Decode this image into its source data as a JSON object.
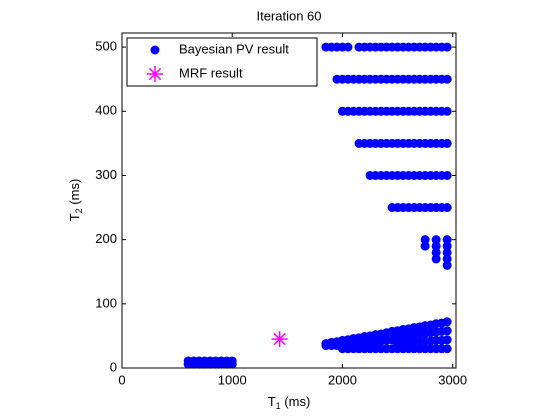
{
  "chart_data": {
    "type": "scatter",
    "title": "Iteration 60",
    "x_label": {
      "main": "T",
      "sub": "1",
      "unit": " (ms)"
    },
    "y_label": {
      "main": "T",
      "sub": "2",
      "unit": " (ms)"
    },
    "xlim": [
      0,
      3030
    ],
    "xticks": [
      0,
      1000,
      2000,
      3000
    ],
    "ylim": [
      0,
      522
    ],
    "yticks": [
      0,
      100,
      200,
      300,
      400,
      500
    ],
    "grid": false,
    "legend": "upper left",
    "series": [
      {
        "name": "Bayesian PV result",
        "color": "#0000ff",
        "marker": "o",
        "x": [
          600,
          650,
          700,
          750,
          800,
          850,
          900,
          950,
          1000,
          600,
          650,
          700,
          750,
          800,
          850,
          900,
          950,
          1000,
          1850,
          1900,
          1950,
          2000,
          2050,
          2150,
          2200,
          2250,
          2300,
          2350,
          2400,
          2450,
          2500,
          2550,
          2600,
          2650,
          2700,
          2750,
          2800,
          2850,
          2900,
          2950,
          1950,
          2000,
          2050,
          2100,
          2150,
          2200,
          2250,
          2300,
          2350,
          2400,
          2450,
          2500,
          2550,
          2600,
          2650,
          2700,
          2750,
          2800,
          2850,
          2900,
          2950,
          2000,
          2050,
          2100,
          2150,
          2200,
          2250,
          2300,
          2350,
          2400,
          2450,
          2500,
          2550,
          2600,
          2650,
          2700,
          2750,
          2800,
          2850,
          2900,
          2950,
          2150,
          2200,
          2250,
          2300,
          2350,
          2400,
          2450,
          2500,
          2550,
          2600,
          2650,
          2700,
          2750,
          2800,
          2850,
          2900,
          2950,
          2250,
          2300,
          2350,
          2400,
          2450,
          2500,
          2550,
          2600,
          2650,
          2700,
          2750,
          2800,
          2850,
          2900,
          2950,
          2450,
          2500,
          2550,
          2600,
          2650,
          2700,
          2750,
          2800,
          2850,
          2900,
          2950,
          2750,
          2750,
          2850,
          2850,
          2850,
          2850,
          2950,
          2950,
          2950,
          2950,
          2950,
          1850,
          1850,
          1850,
          1900,
          1900,
          1900,
          1950,
          1950,
          1950,
          2000,
          2000,
          2000,
          2050,
          2050,
          2050,
          2100,
          2100,
          2100,
          2150,
          2150,
          2150,
          2200,
          2200,
          2200,
          2250,
          2250,
          2250,
          2300,
          2300,
          2300,
          2350,
          2350,
          2350,
          2400,
          2400,
          2400,
          2450,
          2450,
          2450,
          2500,
          2500,
          2500,
          2500,
          2550,
          2550,
          2550,
          2550,
          2600,
          2600,
          2600,
          2600,
          2650,
          2650,
          2650,
          2650,
          2700,
          2700,
          2700,
          2700,
          2750,
          2750,
          2750,
          2750,
          2800,
          2800,
          2800,
          2800,
          2850,
          2850,
          2850,
          2850,
          2900,
          2900,
          2900,
          2900,
          2950,
          2950,
          2950,
          2950
        ],
        "values": [
          6,
          6,
          6,
          6,
          6,
          6,
          6,
          6,
          6,
          11,
          11,
          11,
          11,
          11,
          11,
          11,
          11,
          11,
          500,
          500,
          500,
          500,
          500,
          500,
          500,
          500,
          500,
          500,
          500,
          500,
          500,
          500,
          500,
          500,
          500,
          500,
          500,
          500,
          500,
          500,
          450,
          450,
          450,
          450,
          450,
          450,
          450,
          450,
          450,
          450,
          450,
          450,
          450,
          450,
          450,
          450,
          450,
          450,
          450,
          450,
          450,
          400,
          400,
          400,
          400,
          400,
          400,
          400,
          400,
          400,
          400,
          400,
          400,
          400,
          400,
          400,
          400,
          400,
          400,
          400,
          400,
          350,
          350,
          350,
          350,
          350,
          350,
          350,
          350,
          350,
          350,
          350,
          350,
          350,
          350,
          350,
          350,
          350,
          300,
          300,
          300,
          300,
          300,
          300,
          300,
          300,
          300,
          300,
          300,
          300,
          300,
          300,
          300,
          250,
          250,
          250,
          250,
          250,
          250,
          250,
          250,
          250,
          250,
          250,
          200,
          190,
          200,
          190,
          180,
          170,
          200,
          190,
          180,
          170,
          160,
          35,
          37,
          38,
          35,
          38,
          40,
          35,
          38,
          41,
          30,
          37,
          43,
          30,
          37,
          44,
          30,
          38,
          46,
          30,
          39,
          47,
          30,
          40,
          49,
          30,
          40,
          50,
          30,
          41,
          52,
          30,
          42,
          53,
          30,
          43,
          55,
          30,
          44,
          57,
          30,
          39,
          49,
          58,
          30,
          40,
          50,
          60,
          30,
          40,
          51,
          61,
          30,
          41,
          52,
          63,
          30,
          41,
          53,
          64,
          30,
          42,
          54,
          66,
          30,
          42,
          55,
          67,
          30,
          43,
          56,
          69,
          30,
          43,
          57,
          70,
          30,
          44,
          58,
          72
        ]
      },
      {
        "name": "MRF result",
        "color": "#ff00ff",
        "marker": "*",
        "x": [
          1430
        ],
        "values": [
          45
        ]
      }
    ]
  }
}
